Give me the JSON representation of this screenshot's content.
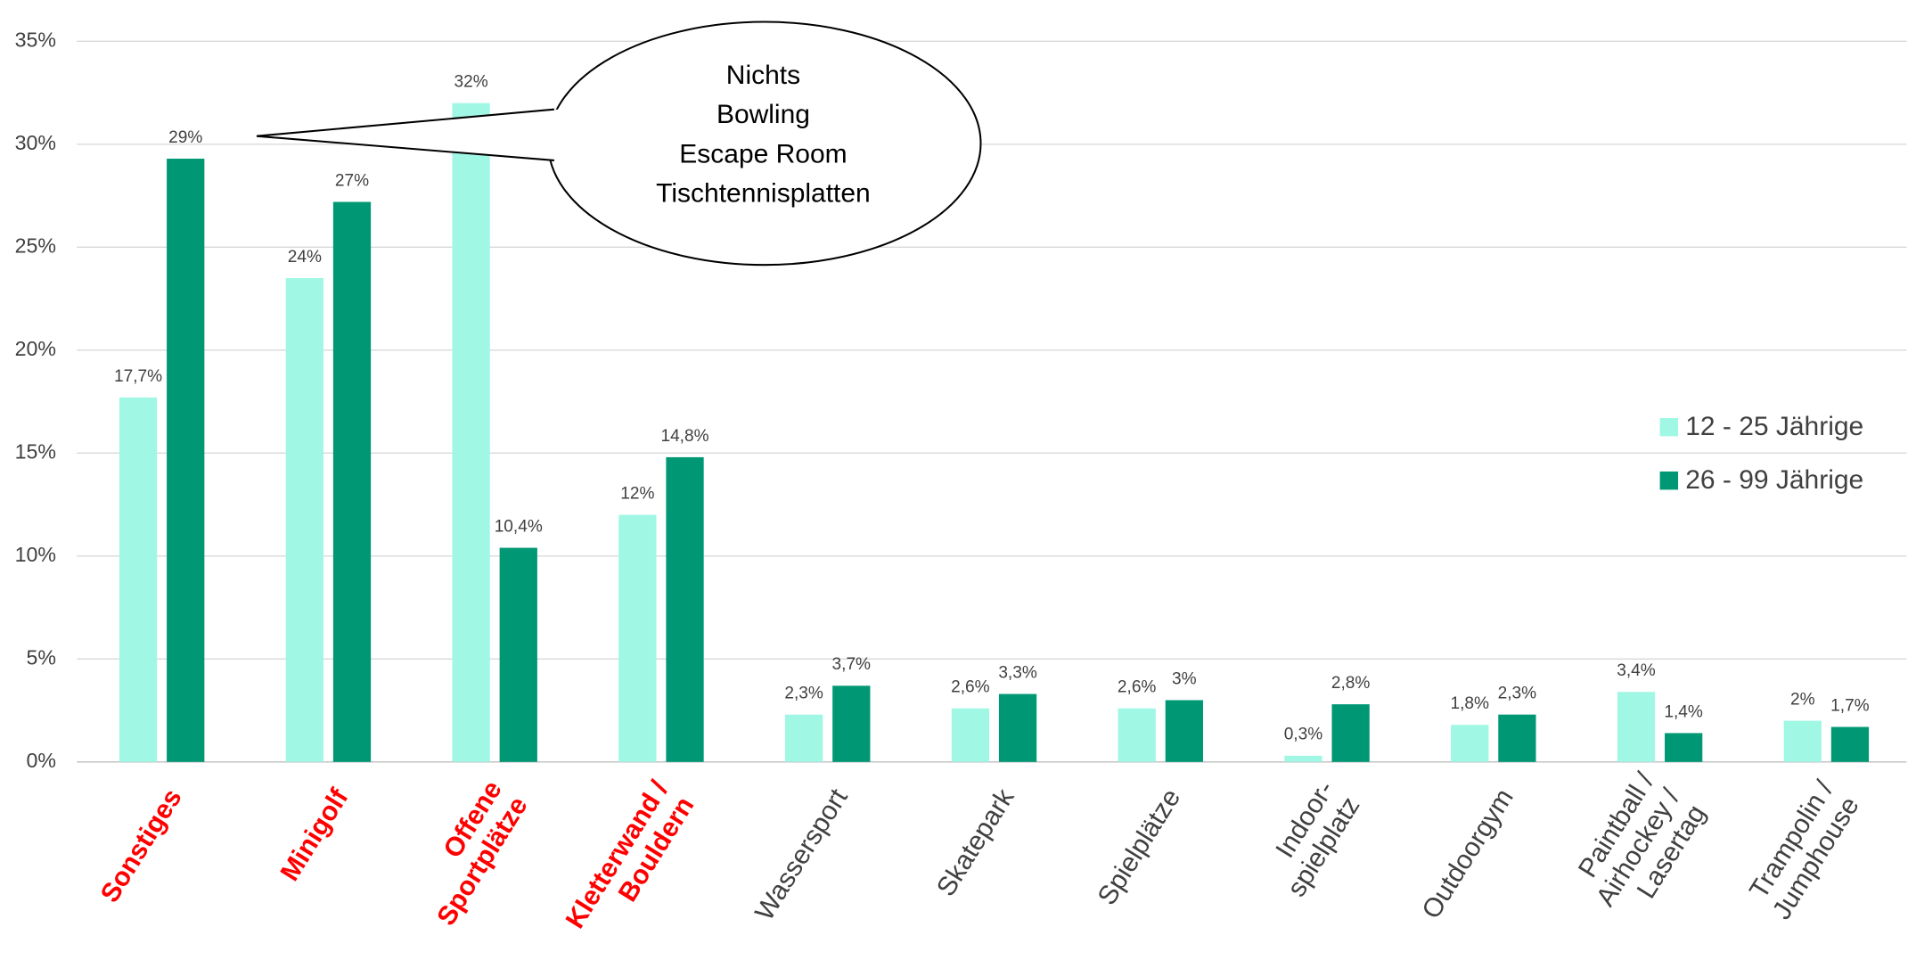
{
  "chart_data": {
    "type": "bar",
    "categories": [
      [
        "Sonstiges"
      ],
      [
        "Minigolf"
      ],
      [
        "Offene",
        "Sportplätze"
      ],
      [
        "Kletterwand /",
        "Bouldern"
      ],
      [
        "Wassersport"
      ],
      [
        "Skatepark"
      ],
      [
        "Spielplätze"
      ],
      [
        "Indoor-",
        "spielplatz"
      ],
      [
        "Outdoorgym"
      ],
      [
        "Paintball /",
        "Airhockey /",
        "Lasertag"
      ],
      [
        "Trampolin /",
        "Jumphouse"
      ]
    ],
    "highlighted": [
      true,
      true,
      true,
      true,
      false,
      false,
      false,
      false,
      false,
      false,
      false
    ],
    "highlight_color": "#ff0000",
    "series": [
      {
        "name": "12 - 25 Jährige",
        "color": "#a0f7e4",
        "values": [
          17.7,
          23.5,
          32,
          12,
          2.3,
          2.6,
          2.6,
          0.3,
          1.8,
          3.4,
          2
        ],
        "value_labels": [
          "17,7%",
          "24%",
          "32%",
          "12%",
          "2,3%",
          "2,6%",
          "2,6%",
          "0,3%",
          "1,8%",
          "3,4%",
          "2%"
        ]
      },
      {
        "name": "26 - 99 Jährige",
        "color": "#009874",
        "values": [
          29.3,
          27.2,
          10.4,
          14.8,
          3.7,
          3.3,
          3,
          2.8,
          2.3,
          1.4,
          1.7
        ],
        "value_labels": [
          "29%",
          "27%",
          "10,4%",
          "14,8%",
          "3,7%",
          "3,3%",
          "3%",
          "2,8%",
          "2,3%",
          "1,4%",
          "1,7%"
        ]
      }
    ],
    "ylim": [
      0,
      35
    ],
    "yticks": [
      {
        "value": 0,
        "label": "0%"
      },
      {
        "value": 5,
        "label": "5%"
      },
      {
        "value": 10,
        "label": "10%"
      },
      {
        "value": 15,
        "label": "15%"
      },
      {
        "value": 20,
        "label": "20%"
      },
      {
        "value": 25,
        "label": "25%"
      },
      {
        "value": 30,
        "label": "30%"
      },
      {
        "value": 35,
        "label": "35%"
      }
    ],
    "grid": true,
    "legend": "right",
    "annotation": [
      "Nichts",
      "Bowling",
      "Escape Room",
      "Tischtennisplatten"
    ]
  }
}
